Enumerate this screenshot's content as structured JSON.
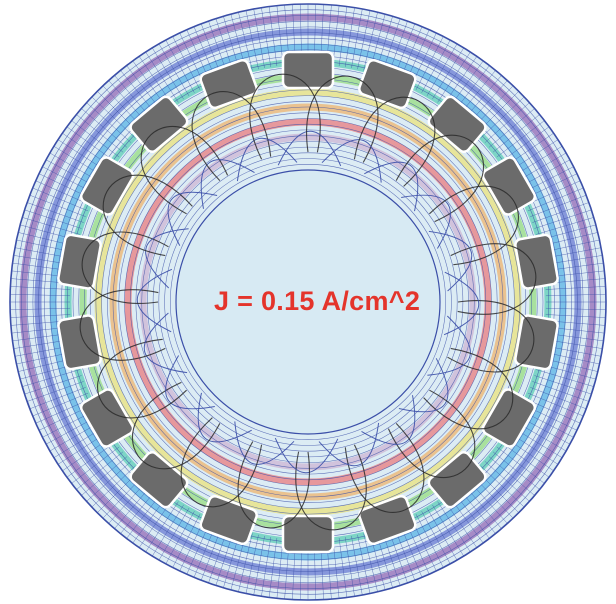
{
  "annotation": {
    "text": "J = 0.15 A/cm^2",
    "color": "#e4342b"
  },
  "colors": {
    "mesh": "#3b4fa8",
    "background_fill": "#dcecf4",
    "slot_fill": "#6b6b6b",
    "spline": "#2a2a2a",
    "bands": [
      "#7a3ca0",
      "#3f52c6",
      "#2aa0e0",
      "#2fc2a0",
      "#7ed957",
      "#f0e050",
      "#f6a03c",
      "#ef5353",
      "#c8a2c8"
    ]
  },
  "structure": {
    "slot_count": 18,
    "ring_count": 30,
    "radial_count": 240,
    "spline_count": 20
  }
}
